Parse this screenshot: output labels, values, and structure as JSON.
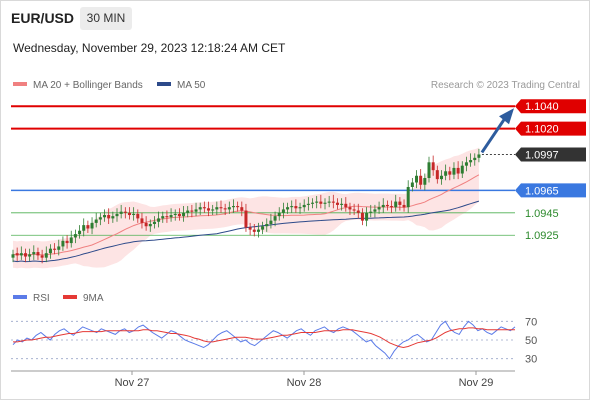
{
  "header": {
    "symbol": "EUR/USD",
    "timeframe": "30 MIN",
    "timestamp": "Wednesday, November 29, 2023 12:18:24 AM CET"
  },
  "legend": {
    "ma20_label": "MA 20 + Bollinger Bands",
    "ma50_label": "MA 50",
    "credit": "Research © 2023 Trading Central"
  },
  "colors": {
    "resistance": "#e00000",
    "current": "#333333",
    "pivot": "#3a78e0",
    "support": "#4caf50",
    "support_text": "#2d8a2d",
    "ma20": "#f08080",
    "ma50": "#2d4a8a",
    "band_fill": "#fde4e4",
    "candle_up": "#2e7d32",
    "candle_down": "#c62828",
    "rsi": "#5b7be8",
    "rsi_ma": "#e53935"
  },
  "chart_data": [
    {
      "type": "candlestick",
      "x_labels": [
        "Nov 27",
        "Nov 28",
        "Nov 29"
      ],
      "ylim": [
        1.0894,
        1.105
      ],
      "levels": [
        {
          "value": 1.104,
          "label": "1.1040",
          "kind": "resistance"
        },
        {
          "value": 1.102,
          "label": "1.1020",
          "kind": "resistance"
        },
        {
          "value": 1.0997,
          "label": "1.0997",
          "kind": "current"
        },
        {
          "value": 1.0965,
          "label": "1.0965",
          "kind": "pivot"
        },
        {
          "value": 1.0945,
          "label": "1.0945",
          "kind": "support"
        },
        {
          "value": 1.0925,
          "label": "1.0925",
          "kind": "support"
        }
      ],
      "close": [
        1.0908,
        1.0907,
        1.0909,
        1.0906,
        1.0908,
        1.091,
        1.0907,
        1.0905,
        1.0909,
        1.0913,
        1.0912,
        1.0915,
        1.092,
        1.0918,
        1.0923,
        1.0926,
        1.0929,
        1.0934,
        1.0931,
        1.0936,
        1.0939,
        1.0941,
        1.0943,
        1.094,
        1.0942,
        1.0944,
        1.0946,
        1.0945,
        1.0943,
        1.0944,
        1.094,
        1.0936,
        1.0933,
        1.0935,
        1.0937,
        1.094,
        1.0942,
        1.0941,
        1.0943,
        1.0944,
        1.0942,
        1.0945,
        1.0947,
        1.0946,
        1.0948,
        1.095,
        1.0949,
        1.0947,
        1.0948,
        1.095,
        1.0949,
        1.0948,
        1.095,
        1.0951,
        1.095,
        1.0947,
        1.0932,
        1.093,
        1.0928,
        1.093,
        1.0933,
        1.0935,
        1.0938,
        1.0942,
        1.0945,
        1.0948,
        1.095,
        1.0951,
        1.0949,
        1.095,
        1.0952,
        1.0953,
        1.0954,
        1.0955,
        1.0953,
        1.0954,
        1.0955,
        1.0954,
        1.0952,
        1.0953,
        1.095,
        1.0948,
        1.0947,
        1.0945,
        1.0938,
        1.0945,
        1.0946,
        1.0948,
        1.095,
        1.0952,
        1.0951,
        1.095,
        1.0955,
        1.0952,
        1.095,
        1.0968,
        1.0972,
        1.0978,
        1.097,
        1.0976,
        1.099,
        1.0983,
        1.0975,
        1.0978,
        1.0982,
        1.0979,
        1.0985,
        1.098,
        1.0987,
        1.099,
        1.0992,
        1.0994,
        1.0997
      ],
      "open_offset": [
        0.0003,
        -0.0002,
        0.0002,
        -0.0003,
        0.0002,
        0.0002,
        -0.0003,
        -0.0002,
        0.0004,
        0.0004,
        -0.0001,
        0.0003,
        0.0005,
        -0.0002,
        0.0005,
        0.0003,
        0.0003,
        0.0005,
        -0.0003,
        0.0005,
        0.0003,
        0.0002,
        0.0002,
        -0.0003,
        0.0002,
        0.0002,
        0.0002,
        -0.0001,
        -0.0002,
        0.0001,
        -0.0004,
        -0.0004,
        -0.0003,
        0.0002,
        0.0002,
        0.0003,
        0.0002,
        -0.0001,
        0.0002,
        0.0001,
        -0.0002,
        0.0003,
        0.0002,
        -0.0001,
        0.0002,
        0.0002,
        -0.0001,
        -0.0002,
        0.0001,
        0.0002,
        -0.0001,
        -0.0001,
        0.0002,
        0.0001,
        -0.0001,
        -0.0003,
        -0.0015,
        -0.0002,
        -0.0002,
        0.0002,
        0.0003,
        0.0002,
        0.0003,
        0.0004,
        0.0003,
        0.0003,
        0.0002,
        0.0001,
        -0.0002,
        0.0001,
        0.0002,
        0.0001,
        0.0001,
        0.0001,
        -0.0002,
        0.0001,
        0.0001,
        -0.0001,
        -0.0002,
        0.0001,
        -0.0003,
        -0.0002,
        -0.0001,
        -0.0002,
        -0.0007,
        0.0007,
        0.0001,
        0.0002,
        0.0002,
        0.0002,
        -0.0001,
        -0.0001,
        0.0005,
        -0.0003,
        -0.0002,
        0.0018,
        0.0004,
        0.0006,
        -0.0008,
        0.0006,
        0.0014,
        -0.0007,
        -0.0008,
        0.0003,
        0.0004,
        -0.0003,
        0.0006,
        -0.0005,
        0.0007,
        0.0003,
        0.0002,
        0.0002,
        0.0003
      ],
      "projection": {
        "from": 1.0997,
        "to": 1.104
      }
    },
    {
      "type": "line",
      "name": "RSI",
      "ma_name": "9MA",
      "ylim": [
        20,
        80
      ],
      "ticks": [
        70,
        50,
        30
      ],
      "rsi": [
        45,
        50,
        48,
        52,
        50,
        55,
        58,
        54,
        50,
        56,
        60,
        62,
        58,
        55,
        60,
        64,
        62,
        60,
        58,
        62,
        60,
        58,
        56,
        60,
        62,
        58,
        60,
        64,
        66,
        62,
        58,
        55,
        52,
        56,
        60,
        58,
        54,
        50,
        48,
        46,
        44,
        42,
        45,
        50,
        55,
        58,
        60,
        56,
        52,
        48,
        50,
        46,
        44,
        48,
        52,
        56,
        60,
        58,
        55,
        52,
        56,
        60,
        62,
        58,
        55,
        60,
        62,
        64,
        60,
        58,
        62,
        64,
        62,
        60,
        56,
        52,
        48,
        50,
        44,
        40,
        36,
        30,
        38,
        44,
        48,
        50,
        54,
        56,
        52,
        48,
        50,
        58,
        66,
        70,
        62,
        58,
        56,
        64,
        70,
        66,
        60,
        62,
        58,
        56,
        60,
        64,
        62,
        60,
        64
      ],
      "ma": [
        48,
        48,
        49,
        50,
        50,
        51,
        52,
        53,
        53,
        54,
        55,
        56,
        57,
        57,
        58,
        59,
        59,
        59,
        59,
        59,
        60,
        60,
        60,
        60,
        60,
        60,
        60,
        60,
        61,
        61,
        60,
        60,
        59,
        58,
        57,
        57,
        56,
        55,
        54,
        52,
        51,
        49,
        48,
        48,
        49,
        50,
        51,
        52,
        53,
        53,
        53,
        52,
        51,
        51,
        51,
        52,
        53,
        54,
        55,
        55,
        56,
        57,
        58,
        58,
        58,
        58,
        59,
        60,
        60,
        60,
        60,
        61,
        61,
        61,
        60,
        59,
        58,
        57,
        55,
        53,
        50,
        47,
        45,
        43,
        42,
        43,
        45,
        47,
        48,
        49,
        50,
        52,
        55,
        58,
        60,
        61,
        62,
        62,
        63,
        63,
        62,
        62,
        61,
        61,
        61,
        61,
        61,
        61,
        61
      ]
    }
  ],
  "rsi_legend": {
    "rsi_label": "RSI",
    "ma_label": "9MA"
  }
}
